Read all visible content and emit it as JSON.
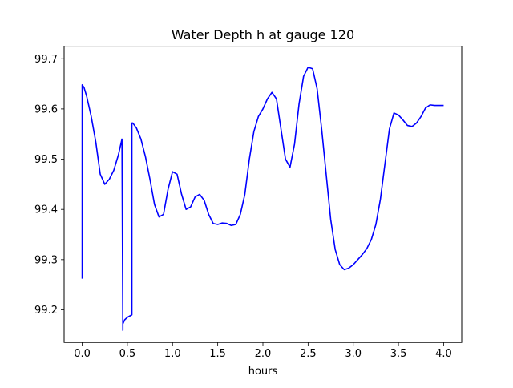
{
  "chart_data": {
    "type": "line",
    "title": "Water Depth h at gauge 120",
    "xlabel": "hours",
    "ylabel": "",
    "xlim": [
      -0.2,
      4.2
    ],
    "ylim": [
      99.135,
      99.725
    ],
    "xticks": [
      0.0,
      0.5,
      1.0,
      1.5,
      2.0,
      2.5,
      3.0,
      3.5,
      4.0
    ],
    "xtick_labels": [
      "0.0",
      "0.5",
      "1.0",
      "1.5",
      "2.0",
      "2.5",
      "3.0",
      "3.5",
      "4.0"
    ],
    "yticks": [
      99.2,
      99.3,
      99.4,
      99.5,
      99.6,
      99.7
    ],
    "ytick_labels": [
      "99.2",
      "99.3",
      "99.4",
      "99.5",
      "99.6",
      "99.7"
    ],
    "grid": false,
    "legend": null,
    "line_color": "#0000ff",
    "series": [
      {
        "x": [
          0.0,
          0.0,
          0.02,
          0.05,
          0.1,
          0.15,
          0.2,
          0.25,
          0.3,
          0.35,
          0.4,
          0.44,
          0.45,
          0.45,
          0.47,
          0.5,
          0.55,
          0.55,
          0.56,
          0.6,
          0.65,
          0.7,
          0.75,
          0.8,
          0.85,
          0.9,
          0.95,
          1.0,
          1.05,
          1.1,
          1.15,
          1.2,
          1.25,
          1.3,
          1.35,
          1.4,
          1.45,
          1.5,
          1.55,
          1.6,
          1.65,
          1.7,
          1.75,
          1.8,
          1.85,
          1.9,
          1.95,
          2.0,
          2.05,
          2.1,
          2.15,
          2.2,
          2.25,
          2.3,
          2.35,
          2.4,
          2.45,
          2.5,
          2.55,
          2.6,
          2.65,
          2.7,
          2.75,
          2.8,
          2.85,
          2.9,
          2.95,
          3.0,
          3.05,
          3.1,
          3.15,
          3.2,
          3.25,
          3.3,
          3.35,
          3.4,
          3.45,
          3.5,
          3.55,
          3.6,
          3.65,
          3.7,
          3.75,
          3.8,
          3.85,
          3.9,
          3.95,
          4.0
        ],
        "y": [
          99.262,
          99.648,
          99.643,
          99.625,
          99.585,
          99.535,
          99.47,
          99.45,
          99.46,
          99.478,
          99.508,
          99.54,
          99.159,
          99.172,
          99.18,
          99.185,
          99.19,
          99.572,
          99.572,
          99.562,
          99.54,
          99.505,
          99.46,
          99.41,
          99.385,
          99.39,
          99.44,
          99.475,
          99.47,
          99.43,
          99.4,
          99.405,
          99.425,
          99.43,
          99.418,
          99.39,
          99.372,
          99.37,
          99.373,
          99.372,
          99.368,
          99.37,
          99.39,
          99.43,
          99.5,
          99.555,
          99.585,
          99.6,
          99.62,
          99.633,
          99.62,
          99.56,
          99.5,
          99.484,
          99.53,
          99.61,
          99.665,
          99.683,
          99.68,
          99.64,
          99.56,
          99.47,
          99.38,
          99.32,
          99.29,
          99.28,
          99.283,
          99.29,
          99.3,
          99.31,
          99.322,
          99.34,
          99.37,
          99.42,
          99.49,
          99.56,
          99.592,
          99.588,
          99.578,
          99.567,
          99.565,
          99.572,
          99.585,
          99.602,
          99.608,
          99.607,
          99.607,
          99.607
        ]
      }
    ]
  }
}
